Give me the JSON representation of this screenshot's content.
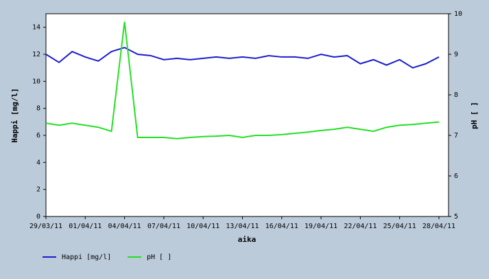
{
  "chart_data": {
    "type": "line",
    "x_label": "aika",
    "y_label": "Happi [mg/l]",
    "y2_label": "pH [ ]",
    "categories": [
      "29/03/11",
      null,
      null,
      "01/04/11",
      null,
      null,
      "04/04/11",
      null,
      null,
      "07/04/11",
      null,
      null,
      "10/04/11",
      null,
      null,
      "13/04/11",
      null,
      null,
      "16/04/11",
      null,
      null,
      "19/04/11",
      null,
      null,
      "22/04/11",
      null,
      null,
      "25/04/11",
      null,
      null,
      "28/04/11"
    ],
    "series": [
      {
        "name": "Happi [mg/l]",
        "color": "#1c1ccc",
        "values": [
          12.0,
          11.4,
          12.2,
          11.8,
          11.5,
          12.2,
          12.5,
          12.0,
          11.9,
          11.6,
          11.7,
          11.6,
          11.7,
          11.8,
          11.7,
          11.8,
          11.7,
          11.9,
          11.8,
          11.8,
          11.7,
          12.0,
          11.8,
          11.9,
          11.3,
          11.6,
          11.2,
          11.6,
          11.0,
          11.3,
          11.8
        ]
      },
      {
        "name": "pH [ ]",
        "color": "#22e022",
        "axis": "y2",
        "values": [
          7.3,
          7.25,
          7.3,
          7.25,
          7.2,
          7.1,
          9.8,
          6.95,
          6.95,
          6.95,
          6.92,
          6.95,
          6.97,
          6.98,
          7.0,
          6.95,
          7.0,
          7.0,
          7.02,
          7.05,
          7.08,
          7.12,
          7.15,
          7.2,
          7.15,
          7.1,
          7.2,
          7.25,
          7.27,
          7.3,
          7.33
        ]
      }
    ],
    "ylim": [
      0,
      15
    ],
    "yticks": [
      0,
      2,
      4,
      6,
      8,
      10,
      12,
      14
    ],
    "y2lim": [
      5,
      10
    ],
    "y2ticks": [
      5,
      6,
      7,
      8,
      9,
      10
    ]
  }
}
